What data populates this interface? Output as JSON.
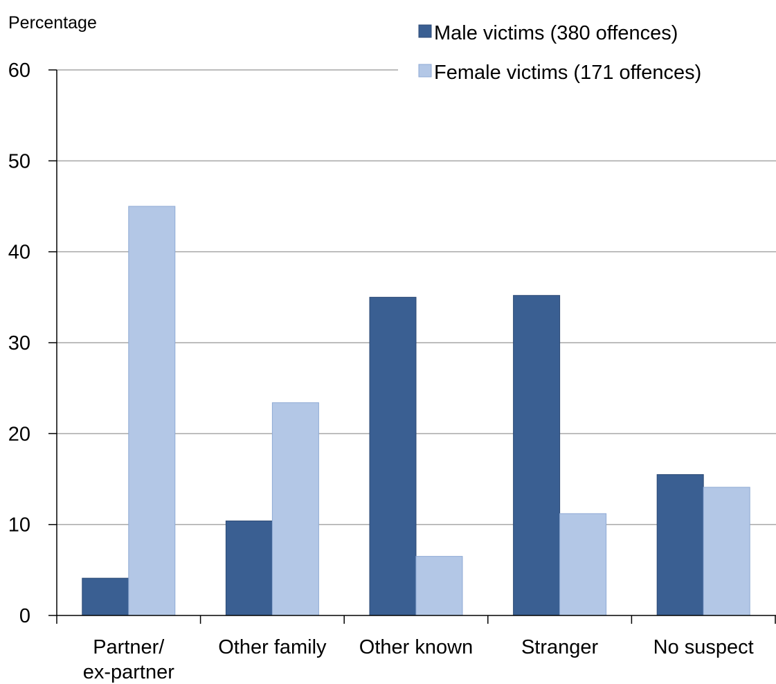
{
  "chart_data": {
    "type": "bar",
    "ylabel": "Percentage",
    "ylim": [
      0,
      60
    ],
    "yticks": [
      0,
      10,
      20,
      30,
      40,
      50,
      60
    ],
    "grid": true,
    "legend_position": "top-right",
    "categories": [
      [
        "Partner/",
        "ex-partner"
      ],
      [
        "Other family"
      ],
      [
        "Other known"
      ],
      [
        "Stranger"
      ],
      [
        "No suspect"
      ]
    ],
    "series": [
      {
        "name": "Male victims (380 offences)",
        "color": "#3A5F92",
        "values": [
          4.1,
          10.4,
          35.0,
          35.2,
          15.5
        ]
      },
      {
        "name": "Female victims (171 offences)",
        "color": "#B3C7E6",
        "values": [
          45.0,
          23.4,
          6.5,
          11.2,
          14.1
        ]
      }
    ]
  }
}
